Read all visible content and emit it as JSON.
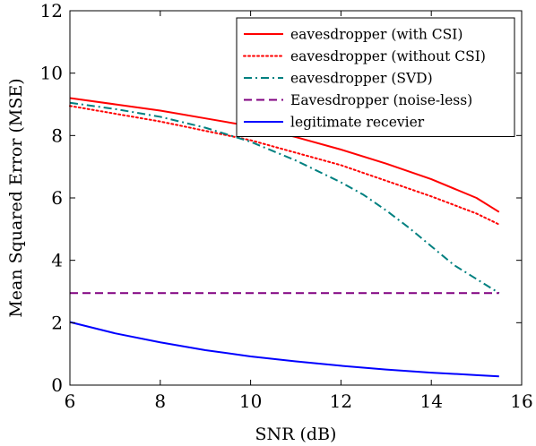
{
  "chart_data": {
    "type": "line",
    "xlabel": "SNR (dB)",
    "ylabel": "Mean Squared Error (MSE)",
    "xlim": [
      6,
      16
    ],
    "ylim": [
      0,
      12
    ],
    "xticks": [
      6,
      8,
      10,
      12,
      14,
      16
    ],
    "yticks": [
      0,
      2,
      4,
      6,
      8,
      10,
      12
    ],
    "grid": false,
    "legend_position": "top-right",
    "series": [
      {
        "name": "eavesdropper (with CSI)",
        "color": "#ff0000",
        "style": "solid",
        "x": [
          6,
          7,
          8,
          9,
          10,
          11,
          12,
          13,
          14,
          15,
          15.5
        ],
        "y": [
          9.2,
          9.0,
          8.8,
          8.55,
          8.3,
          7.95,
          7.55,
          7.1,
          6.6,
          6.0,
          5.55
        ]
      },
      {
        "name": "eavesdropper (without CSI)",
        "color": "#ff0000",
        "style": "dotted",
        "x": [
          6,
          7,
          8,
          9,
          10,
          11,
          12,
          13,
          14,
          15,
          15.5
        ],
        "y": [
          8.95,
          8.7,
          8.45,
          8.15,
          7.85,
          7.45,
          7.05,
          6.55,
          6.05,
          5.5,
          5.15
        ]
      },
      {
        "name": "eavesdropper (SVD)",
        "color": "#008080",
        "style": "dashdot",
        "x": [
          6,
          7,
          8,
          9,
          10,
          11,
          12,
          12.5,
          13,
          13.5,
          14,
          14.5,
          15,
          15.5
        ],
        "y": [
          9.05,
          8.85,
          8.6,
          8.25,
          7.8,
          7.2,
          6.5,
          6.1,
          5.6,
          5.05,
          4.45,
          3.85,
          3.4,
          2.95
        ]
      },
      {
        "name": "Eavesdropper (noise-less)",
        "color": "#800080",
        "style": "dashed",
        "x": [
          6,
          15.5
        ],
        "y": [
          2.95,
          2.95
        ]
      },
      {
        "name": "legitimate recevier",
        "color": "#0000ff",
        "style": "solid",
        "x": [
          6,
          7,
          8,
          9,
          10,
          11,
          12,
          13,
          14,
          15,
          15.5
        ],
        "y": [
          2.02,
          1.66,
          1.37,
          1.12,
          0.92,
          0.76,
          0.62,
          0.5,
          0.4,
          0.32,
          0.28
        ]
      }
    ]
  }
}
